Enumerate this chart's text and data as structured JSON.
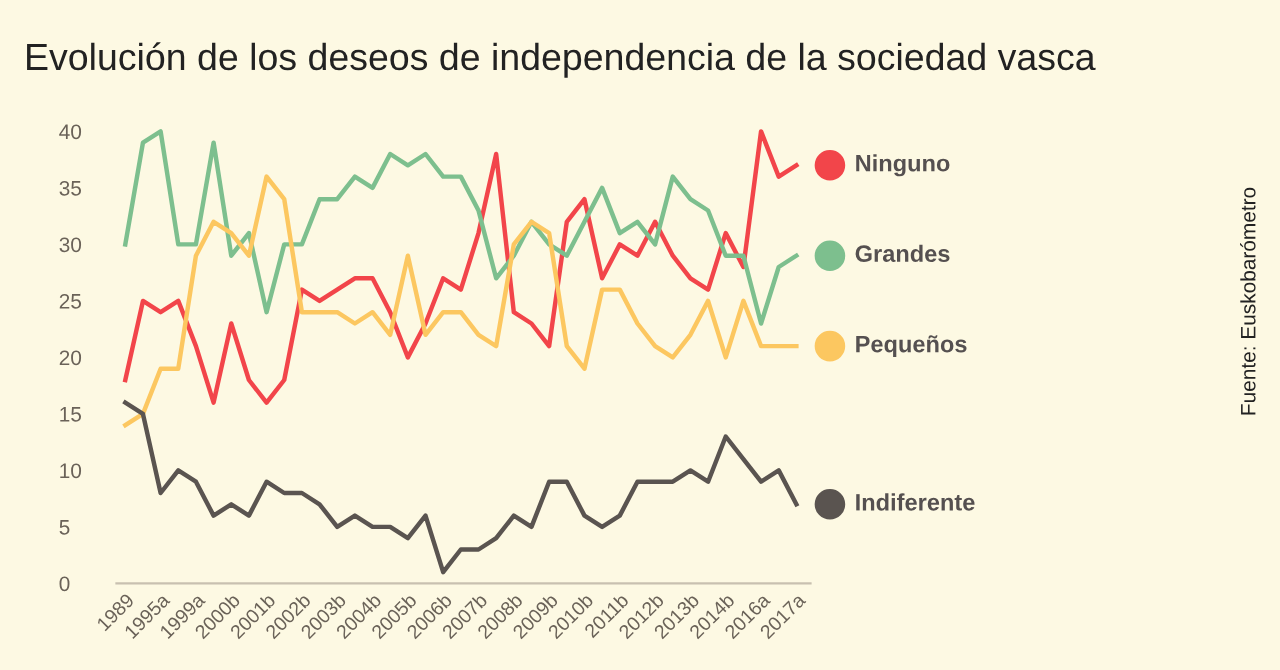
{
  "chart_data": {
    "type": "line",
    "title": "Evolución de los deseos de independencia de la sociedad vasca",
    "categories": [
      "1989",
      null,
      "1995a",
      null,
      "1999a",
      null,
      "2000b",
      null,
      "2001b",
      null,
      "2002b",
      null,
      "2003b",
      null,
      "2004b",
      null,
      "2005b",
      null,
      "2006b",
      null,
      "2007b",
      null,
      "2008b",
      null,
      "2009b",
      null,
      "2010b",
      null,
      "2011b",
      null,
      "2012b",
      null,
      "2013b",
      null,
      "2014b",
      null,
      "2016a",
      null,
      "2017a"
    ],
    "series": [
      {
        "name": "Ninguno",
        "color": "#f2454a",
        "values": [
          18,
          25,
          24,
          25,
          21,
          16,
          23,
          18,
          16,
          18,
          26,
          25,
          26,
          27,
          27,
          24,
          20,
          23,
          27,
          26,
          31,
          38,
          24,
          23,
          21,
          32,
          34,
          27,
          30,
          29,
          32,
          29,
          27,
          26,
          31,
          28,
          40,
          36,
          37
        ]
      },
      {
        "name": "Grandes",
        "color": "#7dbf8e",
        "values": [
          30,
          39,
          40,
          30,
          30,
          39,
          29,
          31,
          24,
          30,
          30,
          34,
          34,
          36,
          35,
          38,
          37,
          38,
          36,
          36,
          33,
          27,
          29,
          32,
          30,
          29,
          32,
          35,
          31,
          32,
          30,
          36,
          34,
          33,
          29,
          29,
          23,
          28,
          29
        ]
      },
      {
        "name": "Pequeños",
        "color": "#fcc760",
        "values": [
          14,
          15,
          19,
          19,
          29,
          32,
          31,
          29,
          36,
          34,
          24,
          24,
          24,
          23,
          24,
          22,
          29,
          22,
          24,
          24,
          22,
          21,
          30,
          32,
          31,
          21,
          19,
          26,
          26,
          23,
          21,
          20,
          22,
          25,
          20,
          25,
          21,
          21,
          21
        ]
      },
      {
        "name": "Indiferente",
        "color": "#5a5450",
        "values": [
          16,
          15,
          8,
          10,
          9,
          6,
          7,
          6,
          9,
          8,
          8,
          7,
          5,
          6,
          5,
          5,
          4,
          6,
          1,
          3,
          3,
          4,
          6,
          5,
          9,
          9,
          6,
          5,
          6,
          9,
          9,
          9,
          10,
          9,
          13,
          11,
          9,
          10,
          7
        ]
      }
    ],
    "ylim": [
      0,
      40
    ],
    "yticks": [
      0,
      5,
      10,
      15,
      20,
      25,
      30,
      35,
      40
    ],
    "grid": false,
    "legend": "right",
    "marker": "none",
    "line_style": "solid",
    "annotations": [
      "Fuente: Euskobarómetro"
    ]
  }
}
